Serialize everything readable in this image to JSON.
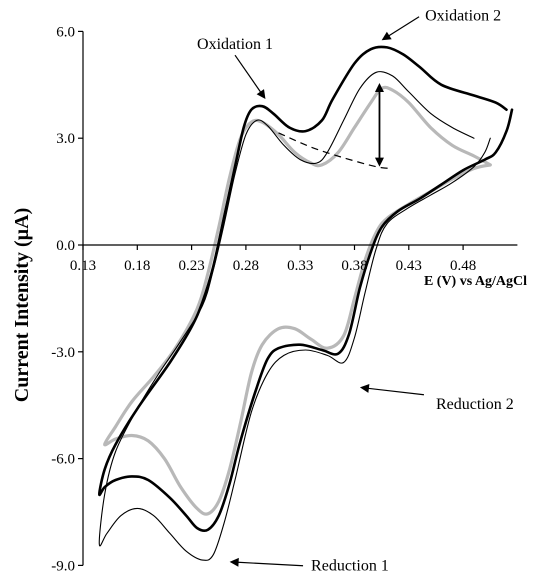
{
  "chart_data": {
    "type": "line",
    "title": "",
    "xlabel": "E (V) vs Ag/AgCl",
    "ylabel": "Current Intensity (µA)",
    "xlim": [
      0.13,
      0.53
    ],
    "ylim": [
      -9.0,
      6.0
    ],
    "x_ticks": [
      "0.13",
      "0.18",
      "0.23",
      "0.28",
      "0.33",
      "0.38",
      "0.43",
      "0.48"
    ],
    "x_tick_values": [
      0.13,
      0.18,
      0.23,
      0.28,
      0.33,
      0.38,
      0.43,
      0.48
    ],
    "y_ticks": [
      "6.0",
      "3.0",
      "0.0",
      "-3.0",
      "-6.0",
      "-9.0"
    ],
    "y_tick_values": [
      6.0,
      3.0,
      0.0,
      -3.0,
      -6.0,
      -9.0
    ],
    "grid": false,
    "legend": "none",
    "series": [
      {
        "style": "thick-black",
        "color": "#000000",
        "points": [
          [
            0.52,
            3.8
          ],
          [
            0.51,
            4.0
          ],
          [
            0.49,
            4.2
          ],
          [
            0.46,
            4.5
          ],
          [
            0.44,
            5.0
          ],
          [
            0.425,
            5.35
          ],
          [
            0.41,
            5.55
          ],
          [
            0.395,
            5.5
          ],
          [
            0.38,
            5.1
          ],
          [
            0.36,
            4.1
          ],
          [
            0.35,
            3.5
          ],
          [
            0.335,
            3.2
          ],
          [
            0.32,
            3.3
          ],
          [
            0.305,
            3.7
          ],
          [
            0.295,
            3.9
          ],
          [
            0.285,
            3.8
          ],
          [
            0.278,
            3.3
          ],
          [
            0.27,
            2.2
          ],
          [
            0.26,
            0.8
          ],
          [
            0.25,
            -0.6
          ],
          [
            0.24,
            -1.6
          ],
          [
            0.23,
            -2.3
          ],
          [
            0.21,
            -3.3
          ],
          [
            0.18,
            -4.6
          ],
          [
            0.16,
            -5.6
          ],
          [
            0.15,
            -6.3
          ],
          [
            0.145,
            -7.0
          ],
          [
            0.15,
            -6.8
          ],
          [
            0.16,
            -6.6
          ],
          [
            0.175,
            -6.5
          ],
          [
            0.19,
            -6.6
          ],
          [
            0.21,
            -7.1
          ],
          [
            0.225,
            -7.6
          ],
          [
            0.235,
            -7.95
          ],
          [
            0.245,
            -8.0
          ],
          [
            0.255,
            -7.6
          ],
          [
            0.265,
            -6.7
          ],
          [
            0.275,
            -5.5
          ],
          [
            0.29,
            -4.0
          ],
          [
            0.3,
            -3.2
          ],
          [
            0.31,
            -2.9
          ],
          [
            0.33,
            -2.8
          ],
          [
            0.35,
            -2.95
          ],
          [
            0.365,
            -3.05
          ],
          [
            0.375,
            -2.5
          ],
          [
            0.385,
            -1.2
          ],
          [
            0.395,
            -0.2
          ],
          [
            0.405,
            0.5
          ],
          [
            0.42,
            0.95
          ],
          [
            0.44,
            1.3
          ],
          [
            0.46,
            1.7
          ],
          [
            0.48,
            2.1
          ],
          [
            0.5,
            2.4
          ],
          [
            0.51,
            2.6
          ],
          [
            0.52,
            3.2
          ],
          [
            0.525,
            3.8
          ]
        ]
      },
      {
        "style": "thin-black",
        "color": "#000000",
        "points": [
          [
            0.49,
            3.0
          ],
          [
            0.47,
            3.3
          ],
          [
            0.45,
            3.7
          ],
          [
            0.43,
            4.3
          ],
          [
            0.415,
            4.75
          ],
          [
            0.4,
            4.85
          ],
          [
            0.385,
            4.4
          ],
          [
            0.37,
            3.5
          ],
          [
            0.355,
            2.6
          ],
          [
            0.345,
            2.3
          ],
          [
            0.33,
            2.4
          ],
          [
            0.315,
            2.8
          ],
          [
            0.3,
            3.35
          ],
          [
            0.29,
            3.5
          ],
          [
            0.28,
            3.1
          ],
          [
            0.27,
            2.0
          ],
          [
            0.26,
            0.6
          ],
          [
            0.25,
            -0.7
          ],
          [
            0.24,
            -1.7
          ],
          [
            0.22,
            -2.7
          ],
          [
            0.2,
            -3.6
          ],
          [
            0.18,
            -4.6
          ],
          [
            0.16,
            -5.8
          ],
          [
            0.15,
            -7.0
          ],
          [
            0.145,
            -8.4
          ],
          [
            0.152,
            -8.1
          ],
          [
            0.165,
            -7.6
          ],
          [
            0.18,
            -7.4
          ],
          [
            0.195,
            -7.6
          ],
          [
            0.21,
            -8.1
          ],
          [
            0.225,
            -8.6
          ],
          [
            0.24,
            -8.85
          ],
          [
            0.25,
            -8.7
          ],
          [
            0.26,
            -7.8
          ],
          [
            0.27,
            -6.6
          ],
          [
            0.285,
            -4.7
          ],
          [
            0.3,
            -3.6
          ],
          [
            0.315,
            -3.1
          ],
          [
            0.335,
            -2.95
          ],
          [
            0.355,
            -3.1
          ],
          [
            0.37,
            -3.3
          ],
          [
            0.38,
            -2.6
          ],
          [
            0.39,
            -1.3
          ],
          [
            0.4,
            -0.1
          ],
          [
            0.41,
            0.6
          ],
          [
            0.43,
            1.05
          ],
          [
            0.45,
            1.4
          ],
          [
            0.47,
            1.75
          ],
          [
            0.49,
            2.2
          ],
          [
            0.5,
            2.6
          ],
          [
            0.505,
            3.0
          ]
        ]
      },
      {
        "style": "thick-gray",
        "color": "#b8b8b8",
        "points": [
          [
            0.505,
            2.25
          ],
          [
            0.49,
            2.5
          ],
          [
            0.47,
            2.8
          ],
          [
            0.45,
            3.3
          ],
          [
            0.43,
            4.0
          ],
          [
            0.415,
            4.35
          ],
          [
            0.405,
            4.4
          ],
          [
            0.395,
            4.0
          ],
          [
            0.38,
            3.3
          ],
          [
            0.365,
            2.6
          ],
          [
            0.35,
            2.25
          ],
          [
            0.34,
            2.3
          ],
          [
            0.325,
            2.6
          ],
          [
            0.31,
            3.1
          ],
          [
            0.295,
            3.45
          ],
          [
            0.285,
            3.45
          ],
          [
            0.275,
            3.0
          ],
          [
            0.265,
            1.9
          ],
          [
            0.255,
            0.5
          ],
          [
            0.245,
            -0.8
          ],
          [
            0.235,
            -1.8
          ],
          [
            0.215,
            -2.9
          ],
          [
            0.195,
            -3.7
          ],
          [
            0.175,
            -4.4
          ],
          [
            0.16,
            -5.1
          ],
          [
            0.15,
            -5.6
          ],
          [
            0.16,
            -5.45
          ],
          [
            0.175,
            -5.35
          ],
          [
            0.19,
            -5.5
          ],
          [
            0.205,
            -6.0
          ],
          [
            0.22,
            -6.8
          ],
          [
            0.235,
            -7.4
          ],
          [
            0.245,
            -7.55
          ],
          [
            0.255,
            -7.2
          ],
          [
            0.265,
            -6.3
          ],
          [
            0.275,
            -5.0
          ],
          [
            0.285,
            -3.6
          ],
          [
            0.295,
            -2.8
          ],
          [
            0.31,
            -2.35
          ],
          [
            0.325,
            -2.35
          ],
          [
            0.34,
            -2.65
          ],
          [
            0.355,
            -2.9
          ],
          [
            0.37,
            -2.55
          ],
          [
            0.38,
            -1.5
          ],
          [
            0.39,
            -0.4
          ],
          [
            0.4,
            0.35
          ],
          [
            0.41,
            0.75
          ],
          [
            0.43,
            1.15
          ],
          [
            0.45,
            1.5
          ],
          [
            0.47,
            1.85
          ],
          [
            0.49,
            2.15
          ],
          [
            0.505,
            2.25
          ]
        ]
      }
    ],
    "baseline_extrapolation": {
      "style": "dashed",
      "points": [
        [
          0.31,
          3.15
        ],
        [
          0.34,
          2.75
        ],
        [
          0.37,
          2.45
        ],
        [
          0.4,
          2.2
        ],
        [
          0.415,
          2.15
        ]
      ]
    },
    "peak_height_arrow": {
      "x": 0.403,
      "y_from": 2.2,
      "y_to": 4.55
    },
    "annotations": [
      {
        "text": "Oxidation 1",
        "x": 0.235,
        "y": 5.5,
        "target": [
          0.298,
          4.1
        ]
      },
      {
        "text": "Oxidation 2",
        "x": 0.445,
        "y": 6.3,
        "target": [
          0.405,
          5.75
        ]
      },
      {
        "text": "Reduction 2",
        "x": 0.455,
        "y": -4.6,
        "target": [
          0.385,
          -4.0
        ]
      },
      {
        "text": "Reduction 1",
        "x": 0.34,
        "y": -9.15,
        "target": [
          0.265,
          -8.9
        ]
      }
    ]
  }
}
